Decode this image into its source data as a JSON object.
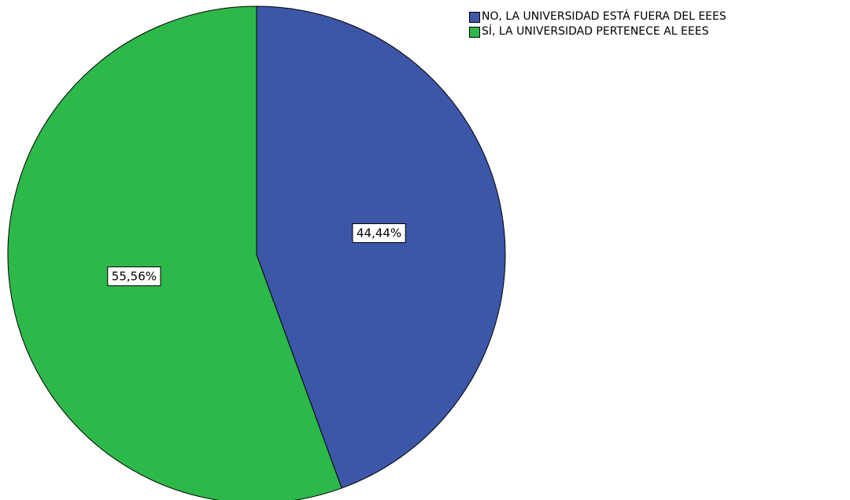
{
  "chart_data": {
    "type": "pie",
    "categories": [
      "NO, LA UNIVERSIDAD ESTÁ FUERA DEL EEES",
      "SÍ, LA UNIVERSIDAD PERTENECE AL EEES"
    ],
    "values": [
      44.44,
      55.56
    ],
    "data_labels": [
      "44,44%",
      "55,56%"
    ],
    "colors": [
      "#3c56a8",
      "#2db84a"
    ],
    "legend_position": "top-right",
    "title": ""
  },
  "legend": {
    "items": [
      {
        "label": "NO, LA UNIVERSIDAD ESTÁ FUERA DEL EEES",
        "color": "#3c56a8"
      },
      {
        "label": "SÍ, LA UNIVERSIDAD PERTENECE AL EEES",
        "color": "#2db84a"
      }
    ]
  }
}
